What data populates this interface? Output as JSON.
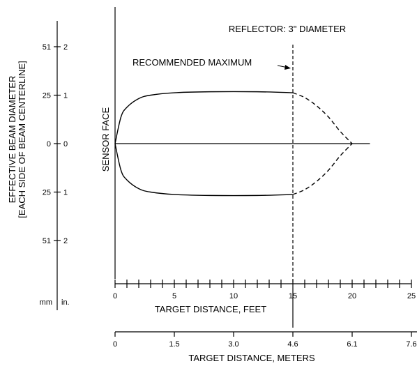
{
  "chart_data": {
    "type": "line",
    "annotations": {
      "reflector": "REFLECTOR:  3\" DIAMETER",
      "recommended_max": "RECOMMENDED MAXIMUM",
      "sensor_face": "SENSOR FACE"
    },
    "x_axis_feet": {
      "label": "TARGET DISTANCE, FEET",
      "range": [
        0,
        25
      ],
      "ticks": [
        0,
        5,
        10,
        15,
        20,
        25
      ],
      "minor_step": 1
    },
    "x_axis_meters": {
      "label": "TARGET DISTANCE, METERS",
      "ticks": [
        "0",
        "1.5",
        "3.0",
        "4.6",
        "6.1",
        "7.6"
      ]
    },
    "y_axis": {
      "label_line1": "EFFECTIVE BEAM DIAMETER",
      "label_line2": "[EACH SIDE OF BEAM CENTERLINE]",
      "units_mm": "mm",
      "units_in": "in.",
      "range_in": [
        -2,
        2
      ],
      "ticks": [
        {
          "mm": "51",
          "in": "2",
          "value": 2
        },
        {
          "mm": "25",
          "in": "1",
          "value": 1
        },
        {
          "mm": "0",
          "in": "0",
          "value": 0
        },
        {
          "mm": "25",
          "in": "1",
          "value": -1
        },
        {
          "mm": "51",
          "in": "2",
          "value": -2
        }
      ]
    },
    "recommended_max_ft": 15,
    "centerline_end_ft": 21.5,
    "series": [
      {
        "style": "solid",
        "points": [
          [
            0,
            0
          ],
          [
            0.5,
            0.55
          ],
          [
            1,
            0.75
          ],
          [
            2,
            0.93
          ],
          [
            3,
            1.0
          ],
          [
            5,
            1.05
          ],
          [
            8,
            1.07
          ],
          [
            12,
            1.07
          ],
          [
            15,
            1.05
          ]
        ]
      },
      {
        "style": "dashed",
        "points": [
          [
            15,
            1.05
          ],
          [
            16,
            0.95
          ],
          [
            17,
            0.78
          ],
          [
            18,
            0.55
          ],
          [
            19,
            0.25
          ],
          [
            20,
            0
          ]
        ]
      }
    ]
  }
}
